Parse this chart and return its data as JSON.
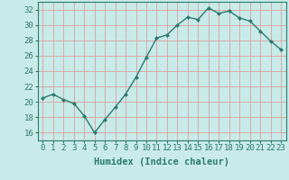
{
  "x": [
    0,
    1,
    2,
    3,
    4,
    5,
    6,
    7,
    8,
    9,
    10,
    11,
    12,
    13,
    14,
    15,
    16,
    17,
    18,
    19,
    20,
    21,
    22,
    23
  ],
  "y": [
    20.5,
    21.0,
    20.3,
    19.8,
    18.2,
    16.0,
    17.7,
    19.3,
    21.0,
    23.2,
    25.8,
    28.3,
    28.7,
    30.0,
    31.0,
    30.7,
    32.2,
    31.5,
    31.8,
    30.9,
    30.5,
    29.2,
    27.9,
    26.8
  ],
  "line_color": "#2d7a6e",
  "marker": "D",
  "marker_size": 2.0,
  "bg_color": "#c8eae8",
  "grid_color": "#d9a0a0",
  "xlabel": "Humidex (Indice chaleur)",
  "ylim": [
    15,
    33
  ],
  "yticks": [
    16,
    18,
    20,
    22,
    24,
    26,
    28,
    30,
    32
  ],
  "xticks": [
    0,
    1,
    2,
    3,
    4,
    5,
    6,
    7,
    8,
    9,
    10,
    11,
    12,
    13,
    14,
    15,
    16,
    17,
    18,
    19,
    20,
    21,
    22,
    23
  ],
  "xtick_labels": [
    "0",
    "1",
    "2",
    "3",
    "4",
    "5",
    "6",
    "7",
    "8",
    "9",
    "10",
    "11",
    "12",
    "13",
    "14",
    "15",
    "16",
    "17",
    "18",
    "19",
    "20",
    "21",
    "22",
    "23"
  ],
  "xlabel_fontsize": 7.5,
  "tick_fontsize": 6.5,
  "linewidth": 1.0,
  "axis_color": "#2d7a6e"
}
